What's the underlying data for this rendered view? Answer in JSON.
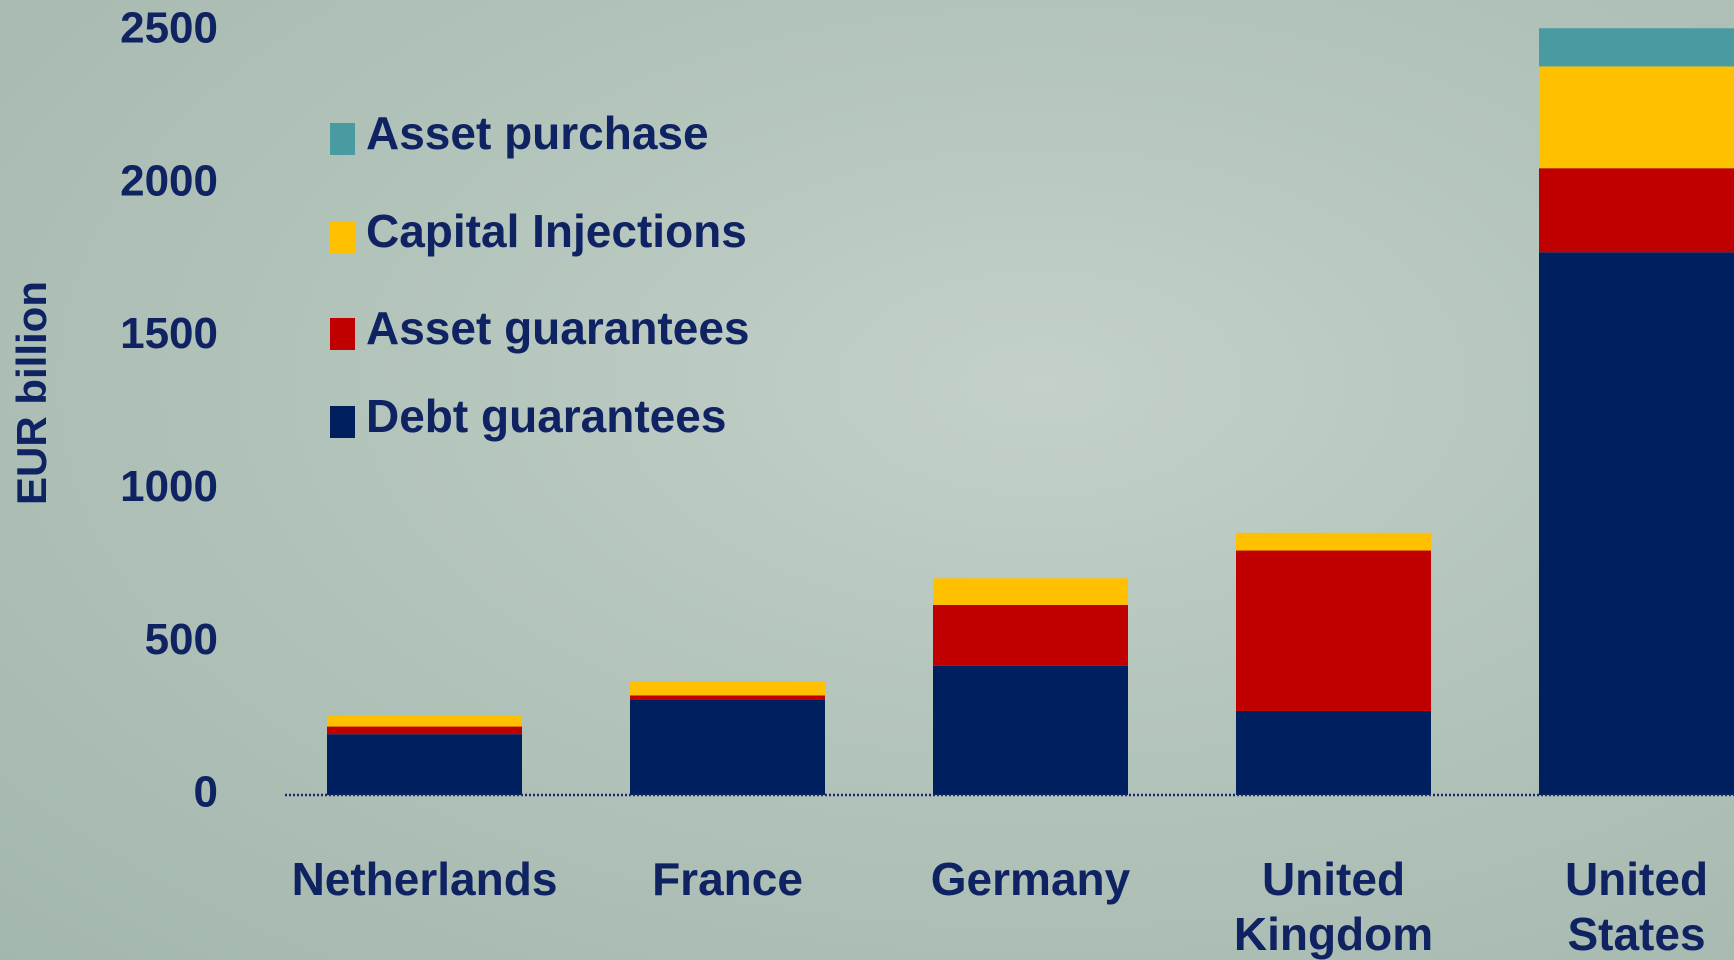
{
  "chart_data": {
    "type": "stacked_bar",
    "y_label": "EUR billion",
    "categories": [
      "Netherlands",
      "France",
      "Germany",
      "United Kingdom",
      "United States"
    ],
    "series": [
      {
        "name": "Debt guarantees",
        "color": "#001f5f",
        "values": [
          199,
          311,
          423,
          275,
          1776
        ]
      },
      {
        "name": "Asset guarantees",
        "color": "#c00000",
        "values": [
          25,
          15,
          199,
          525,
          275
        ]
      },
      {
        "name": "Capital Injections",
        "color": "#ffc000",
        "values": [
          36,
          47,
          87,
          58,
          333
        ]
      },
      {
        "name": "Asset purchase",
        "color": "#4a9ba1",
        "values": [
          0,
          0,
          0,
          0,
          125
        ]
      }
    ],
    "ylim": [
      0,
      2500
    ],
    "yticks": [
      0,
      500,
      1000,
      1500,
      2000,
      2500
    ],
    "grid": false,
    "legend": "upper left"
  }
}
